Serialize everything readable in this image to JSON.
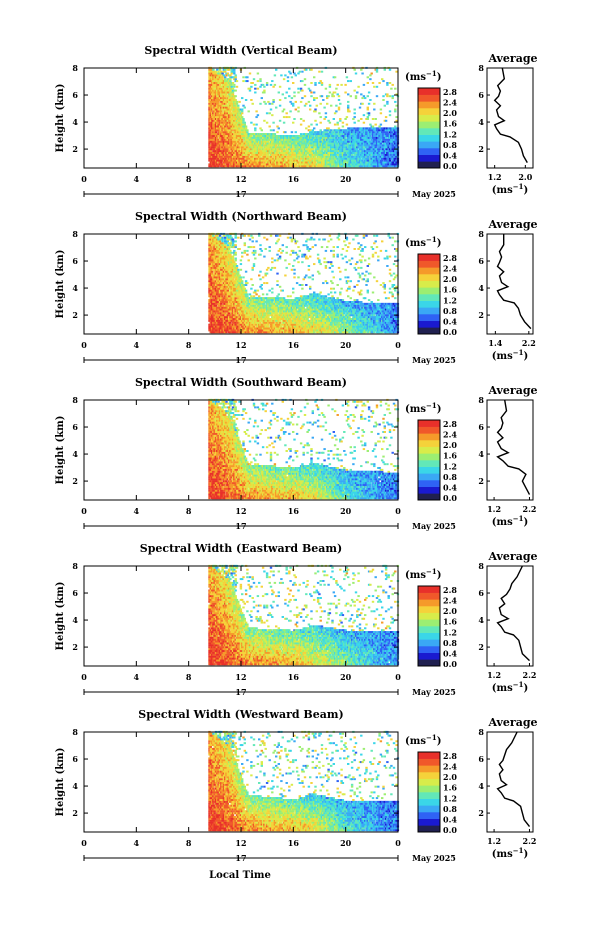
{
  "footer": {
    "xlabel": "Local Time"
  },
  "colorbar": {
    "unit_prefix": "(ms",
    "unit_exp": "−1",
    "unit_suffix": ")",
    "ticks": [
      "2.8",
      "2.4",
      "2.0",
      "1.6",
      "1.2",
      "0.8",
      "0.4",
      "0.0"
    ],
    "colors": [
      "#202050",
      "#1a1ad0",
      "#2f62f5",
      "#3aa8f5",
      "#3ad6e8",
      "#62e8b8",
      "#9cee72",
      "#d8ec4a",
      "#f5d23a",
      "#f59a2a",
      "#f0582a",
      "#e8302a"
    ]
  },
  "charts": [
    {
      "title": "Spectral Width (Vertical Beam)",
      "ylabel": "Height (km)",
      "y_ticks": [
        "8",
        "6",
        "4",
        "2"
      ],
      "x_ticks": [
        "0",
        "4",
        "8",
        "12",
        "16",
        "20",
        "0"
      ],
      "date_tick": "17",
      "month_label": "May 2025",
      "avg_title": "Average",
      "avg_x_ticks": [
        "1.2",
        "2.0"
      ],
      "avg_y_ticks": [
        "8",
        "6",
        "4",
        "2"
      ],
      "avg_xlabel": "(ms",
      "avg_xlabel_exp": "−1",
      "avg_xlabel_suffix": ")"
    },
    {
      "title": "Spectral Width (Northward Beam)",
      "ylabel": "Height (km)",
      "y_ticks": [
        "8",
        "6",
        "4",
        "2"
      ],
      "x_ticks": [
        "0",
        "4",
        "8",
        "12",
        "16",
        "20",
        "0"
      ],
      "date_tick": "17",
      "month_label": "May 2025",
      "avg_title": "Average",
      "avg_x_ticks": [
        "1.4",
        "2.2"
      ],
      "avg_y_ticks": [
        "8",
        "6",
        "4",
        "2"
      ],
      "avg_xlabel": "(ms",
      "avg_xlabel_exp": "−1",
      "avg_xlabel_suffix": ")"
    },
    {
      "title": "Spectral Width (Southward Beam)",
      "ylabel": "Height (km)",
      "y_ticks": [
        "8",
        "6",
        "4",
        "2"
      ],
      "x_ticks": [
        "0",
        "4",
        "8",
        "12",
        "16",
        "20",
        "0"
      ],
      "date_tick": "17",
      "month_label": "May 2025",
      "avg_title": "Average",
      "avg_x_ticks": [
        "1.2",
        "2.2"
      ],
      "avg_y_ticks": [
        "8",
        "6",
        "4",
        "2"
      ],
      "avg_xlabel": "(ms",
      "avg_xlabel_exp": "−1",
      "avg_xlabel_suffix": ")"
    },
    {
      "title": "Spectral Width (Eastward Beam)",
      "ylabel": "Height (km)",
      "y_ticks": [
        "8",
        "6",
        "4",
        "2"
      ],
      "x_ticks": [
        "0",
        "4",
        "8",
        "12",
        "16",
        "20",
        "0"
      ],
      "date_tick": "17",
      "month_label": "May 2025",
      "avg_title": "Average",
      "avg_x_ticks": [
        "1.2",
        "2.2"
      ],
      "avg_y_ticks": [
        "8",
        "6",
        "4",
        "2"
      ],
      "avg_xlabel": "(ms",
      "avg_xlabel_exp": "−1",
      "avg_xlabel_suffix": ")"
    },
    {
      "title": "Spectral Width (Westward Beam)",
      "ylabel": "Height (km)",
      "y_ticks": [
        "8",
        "6",
        "4",
        "2"
      ],
      "x_ticks": [
        "0",
        "4",
        "8",
        "12",
        "16",
        "20",
        "0"
      ],
      "date_tick": "17",
      "month_label": "May 2025",
      "avg_title": "Average",
      "avg_x_ticks": [
        "1.2",
        "2.2"
      ],
      "avg_y_ticks": [
        "8",
        "6",
        "4",
        "2"
      ],
      "avg_xlabel": "(ms",
      "avg_xlabel_exp": "−1",
      "avg_xlabel_suffix": ")"
    }
  ],
  "chart_data": [
    {
      "type": "heatmap",
      "title": "Spectral Width (Vertical Beam)",
      "xlabel": "",
      "ylabel": "Height (km)",
      "xlim": [
        0,
        24
      ],
      "ylim": [
        0.6,
        8.0
      ],
      "clim": [
        0.0,
        2.8
      ],
      "data_start_hour": 9.5,
      "profile": [
        {
          "x": 9.5,
          "top": 8.0,
          "low_value": 2.8,
          "high_value": 2.2
        },
        {
          "x": 11.0,
          "top": 7.0,
          "low_value": 2.6,
          "high_value": 1.8
        },
        {
          "x": 12.5,
          "top": 3.2,
          "low_value": 2.4,
          "high_value": 1.4
        },
        {
          "x": 16.0,
          "top": 3.0,
          "low_value": 2.2,
          "high_value": 1.2
        },
        {
          "x": 17.5,
          "top": 3.3,
          "low_value": 2.0,
          "high_value": 1.0
        },
        {
          "x": 20.0,
          "top": 3.5,
          "low_value": 1.2,
          "high_value": 0.8
        },
        {
          "x": 24.0,
          "top": 3.6,
          "low_value": 0.5,
          "high_value": 0.6
        }
      ],
      "average_profile": {
        "xlim": [
          1.0,
          2.2
        ],
        "x": [
          2.05,
          1.95,
          1.9,
          1.82,
          1.6,
          1.35,
          1.25,
          1.2,
          1.45,
          1.3,
          1.25,
          1.35,
          1.2,
          1.3,
          1.35,
          1.28,
          1.45,
          1.4
        ],
        "y": [
          1.0,
          1.5,
          2.0,
          2.5,
          2.9,
          3.1,
          3.5,
          3.8,
          4.1,
          4.4,
          4.9,
          5.2,
          5.6,
          5.9,
          6.3,
          6.7,
          7.2,
          8.0
        ]
      }
    },
    {
      "type": "heatmap",
      "title": "Spectral Width (Northward Beam)",
      "xlabel": "",
      "ylabel": "Height (km)",
      "xlim": [
        0,
        24
      ],
      "ylim": [
        0.6,
        8.0
      ],
      "clim": [
        0.0,
        2.8
      ],
      "data_start_hour": 9.5,
      "profile": [
        {
          "x": 9.5,
          "top": 8.0,
          "low_value": 2.8,
          "high_value": 2.2
        },
        {
          "x": 11.0,
          "top": 7.0,
          "low_value": 2.6,
          "high_value": 1.8
        },
        {
          "x": 12.5,
          "top": 3.3,
          "low_value": 2.4,
          "high_value": 1.4
        },
        {
          "x": 16.0,
          "top": 3.2,
          "low_value": 2.2,
          "high_value": 1.2
        },
        {
          "x": 17.5,
          "top": 3.6,
          "low_value": 2.0,
          "high_value": 1.0
        },
        {
          "x": 20.0,
          "top": 3.0,
          "low_value": 1.6,
          "high_value": 0.8
        },
        {
          "x": 24.0,
          "top": 2.8,
          "low_value": 0.6,
          "high_value": 0.6
        }
      ],
      "average_profile": {
        "xlim": [
          1.2,
          2.3
        ],
        "x": [
          2.25,
          2.1,
          2.0,
          1.95,
          1.85,
          1.6,
          1.5,
          1.45,
          1.7,
          1.55,
          1.5,
          1.6,
          1.45,
          1.5,
          1.55,
          1.5,
          1.6,
          1.6
        ],
        "y": [
          1.0,
          1.5,
          2.0,
          2.5,
          2.9,
          3.1,
          3.5,
          3.8,
          4.1,
          4.4,
          4.9,
          5.2,
          5.6,
          5.9,
          6.3,
          6.7,
          7.2,
          8.0
        ]
      }
    },
    {
      "type": "heatmap",
      "title": "Spectral Width (Southward Beam)",
      "xlabel": "",
      "ylabel": "Height (km)",
      "xlim": [
        0,
        24
      ],
      "ylim": [
        0.6,
        8.0
      ],
      "clim": [
        0.0,
        2.8
      ],
      "data_start_hour": 9.5,
      "profile": [
        {
          "x": 9.5,
          "top": 8.0,
          "low_value": 2.8,
          "high_value": 2.2
        },
        {
          "x": 11.0,
          "top": 7.0,
          "low_value": 2.6,
          "high_value": 1.8
        },
        {
          "x": 12.5,
          "top": 3.2,
          "low_value": 2.4,
          "high_value": 1.4
        },
        {
          "x": 16.0,
          "top": 3.0,
          "low_value": 2.2,
          "high_value": 1.2
        },
        {
          "x": 17.5,
          "top": 3.3,
          "low_value": 2.0,
          "high_value": 1.0
        },
        {
          "x": 20.0,
          "top": 2.8,
          "low_value": 1.2,
          "high_value": 0.8
        },
        {
          "x": 24.0,
          "top": 2.6,
          "low_value": 0.5,
          "high_value": 0.6
        }
      ],
      "average_profile": {
        "xlim": [
          1.0,
          2.3
        ],
        "x": [
          2.2,
          2.1,
          2.0,
          2.1,
          1.9,
          1.6,
          1.45,
          1.3,
          1.6,
          1.4,
          1.3,
          1.45,
          1.3,
          1.4,
          1.45,
          1.4,
          1.55,
          1.5
        ],
        "y": [
          1.0,
          1.5,
          2.0,
          2.5,
          2.9,
          3.1,
          3.5,
          3.8,
          4.1,
          4.4,
          4.9,
          5.2,
          5.6,
          5.9,
          6.3,
          6.7,
          7.2,
          8.0
        ]
      }
    },
    {
      "type": "heatmap",
      "title": "Spectral Width (Eastward Beam)",
      "xlabel": "",
      "ylabel": "Height (km)",
      "xlim": [
        0,
        24
      ],
      "ylim": [
        0.6,
        8.0
      ],
      "clim": [
        0.0,
        2.8
      ],
      "data_start_hour": 9.5,
      "profile": [
        {
          "x": 9.5,
          "top": 8.0,
          "low_value": 2.8,
          "high_value": 2.2
        },
        {
          "x": 11.0,
          "top": 7.0,
          "low_value": 2.6,
          "high_value": 1.8
        },
        {
          "x": 12.5,
          "top": 3.4,
          "low_value": 2.4,
          "high_value": 1.4
        },
        {
          "x": 16.0,
          "top": 3.2,
          "low_value": 2.2,
          "high_value": 1.2
        },
        {
          "x": 17.5,
          "top": 3.6,
          "low_value": 2.0,
          "high_value": 1.0
        },
        {
          "x": 20.0,
          "top": 3.2,
          "low_value": 1.4,
          "high_value": 0.8
        },
        {
          "x": 24.0,
          "top": 3.2,
          "low_value": 0.6,
          "high_value": 0.6
        }
      ],
      "average_profile": {
        "xlim": [
          1.0,
          2.3
        ],
        "x": [
          2.2,
          2.0,
          1.95,
          1.9,
          1.75,
          1.5,
          1.4,
          1.3,
          1.6,
          1.4,
          1.35,
          1.5,
          1.4,
          1.55,
          1.65,
          1.7,
          1.85,
          2.0
        ],
        "y": [
          1.0,
          1.5,
          2.0,
          2.5,
          2.9,
          3.1,
          3.5,
          3.8,
          4.1,
          4.4,
          4.9,
          5.2,
          5.6,
          5.9,
          6.3,
          6.7,
          7.2,
          8.0
        ]
      }
    },
    {
      "type": "heatmap",
      "title": "Spectral Width (Westward Beam)",
      "xlabel": "Local Time",
      "ylabel": "Height (km)",
      "xlim": [
        0,
        24
      ],
      "ylim": [
        0.6,
        8.0
      ],
      "clim": [
        0.0,
        2.8
      ],
      "data_start_hour": 9.5,
      "profile": [
        {
          "x": 9.5,
          "top": 8.0,
          "low_value": 2.8,
          "high_value": 2.2
        },
        {
          "x": 11.0,
          "top": 7.0,
          "low_value": 2.6,
          "high_value": 1.8
        },
        {
          "x": 12.5,
          "top": 3.3,
          "low_value": 2.4,
          "high_value": 1.4
        },
        {
          "x": 16.0,
          "top": 3.0,
          "low_value": 2.2,
          "high_value": 1.2
        },
        {
          "x": 17.5,
          "top": 3.4,
          "low_value": 2.0,
          "high_value": 1.0
        },
        {
          "x": 20.0,
          "top": 2.9,
          "low_value": 1.2,
          "high_value": 0.8
        },
        {
          "x": 24.0,
          "top": 2.8,
          "low_value": 0.5,
          "high_value": 0.6
        }
      ],
      "average_profile": {
        "xlim": [
          1.0,
          2.3
        ],
        "x": [
          2.2,
          2.05,
          2.0,
          1.95,
          1.75,
          1.5,
          1.4,
          1.3,
          1.55,
          1.4,
          1.35,
          1.45,
          1.35,
          1.45,
          1.5,
          1.55,
          1.7,
          1.85
        ],
        "y": [
          1.0,
          1.5,
          2.0,
          2.5,
          2.9,
          3.1,
          3.5,
          3.8,
          4.1,
          4.4,
          4.9,
          5.2,
          5.6,
          5.9,
          6.3,
          6.7,
          7.2,
          8.0
        ]
      }
    }
  ]
}
